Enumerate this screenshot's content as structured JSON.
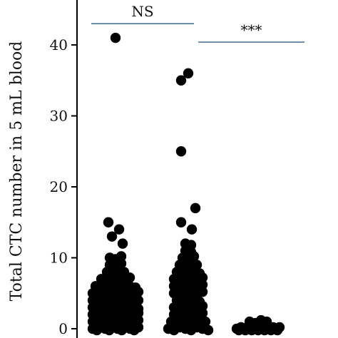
{
  "chart_data": {
    "type": "scatter",
    "title": "",
    "ylabel": "Total CTC number in 5 mL blood",
    "xlabel": "",
    "ylim": [
      0,
      45
    ],
    "yticks": [
      "0",
      "10",
      "20",
      "30",
      "40"
    ],
    "grid": false,
    "colors": {
      "points": "#000000",
      "axis": "#000000",
      "bracket": "#4a7a9a"
    },
    "groups": [
      {
        "values": [
          41,
          15,
          14,
          13,
          12,
          10,
          10,
          10,
          9,
          9,
          9,
          8,
          8,
          8,
          8,
          7,
          7,
          7,
          7,
          7,
          7,
          6,
          6,
          6,
          6,
          6,
          6,
          6,
          6,
          5,
          5,
          5,
          5,
          5,
          5,
          5,
          5,
          5,
          4,
          4,
          4,
          4,
          4,
          4,
          4,
          4,
          4,
          4,
          3,
          3,
          3,
          3,
          3,
          3,
          3,
          3,
          3,
          3,
          3,
          2,
          2,
          2,
          2,
          2,
          2,
          2,
          2,
          2,
          2,
          2,
          2,
          1,
          1,
          1,
          1,
          1,
          1,
          1,
          1,
          1,
          1,
          1,
          1,
          0,
          0,
          0,
          0,
          0,
          0,
          0,
          0,
          0,
          0,
          0,
          0
        ]
      },
      {
        "values": [
          36,
          35,
          25,
          17,
          15,
          14,
          12,
          12,
          11,
          11,
          10,
          10,
          10,
          9,
          9,
          9,
          9,
          8,
          8,
          8,
          8,
          8,
          7,
          7,
          7,
          7,
          7,
          7,
          6,
          6,
          6,
          6,
          6,
          6,
          5,
          5,
          5,
          5,
          5,
          5,
          4,
          4,
          4,
          4,
          4,
          3,
          3,
          3,
          3,
          3,
          3,
          2,
          2,
          2,
          2,
          2,
          2,
          1,
          1,
          1,
          1,
          1,
          1,
          1,
          0,
          0,
          0,
          0,
          0,
          0,
          0,
          0
        ]
      },
      {
        "values": [
          1,
          1,
          1,
          1,
          0,
          0,
          0,
          0,
          0,
          0,
          0,
          0,
          0,
          0,
          0,
          0,
          0,
          0,
          0,
          0,
          0,
          0,
          0,
          0,
          0
        ]
      }
    ],
    "annotations": [
      {
        "text": "NS",
        "from_group": 0,
        "to_group": 1,
        "y": 43
      },
      {
        "text": "***",
        "from_group": 1,
        "to_group": 2,
        "y": 40.4
      }
    ]
  }
}
